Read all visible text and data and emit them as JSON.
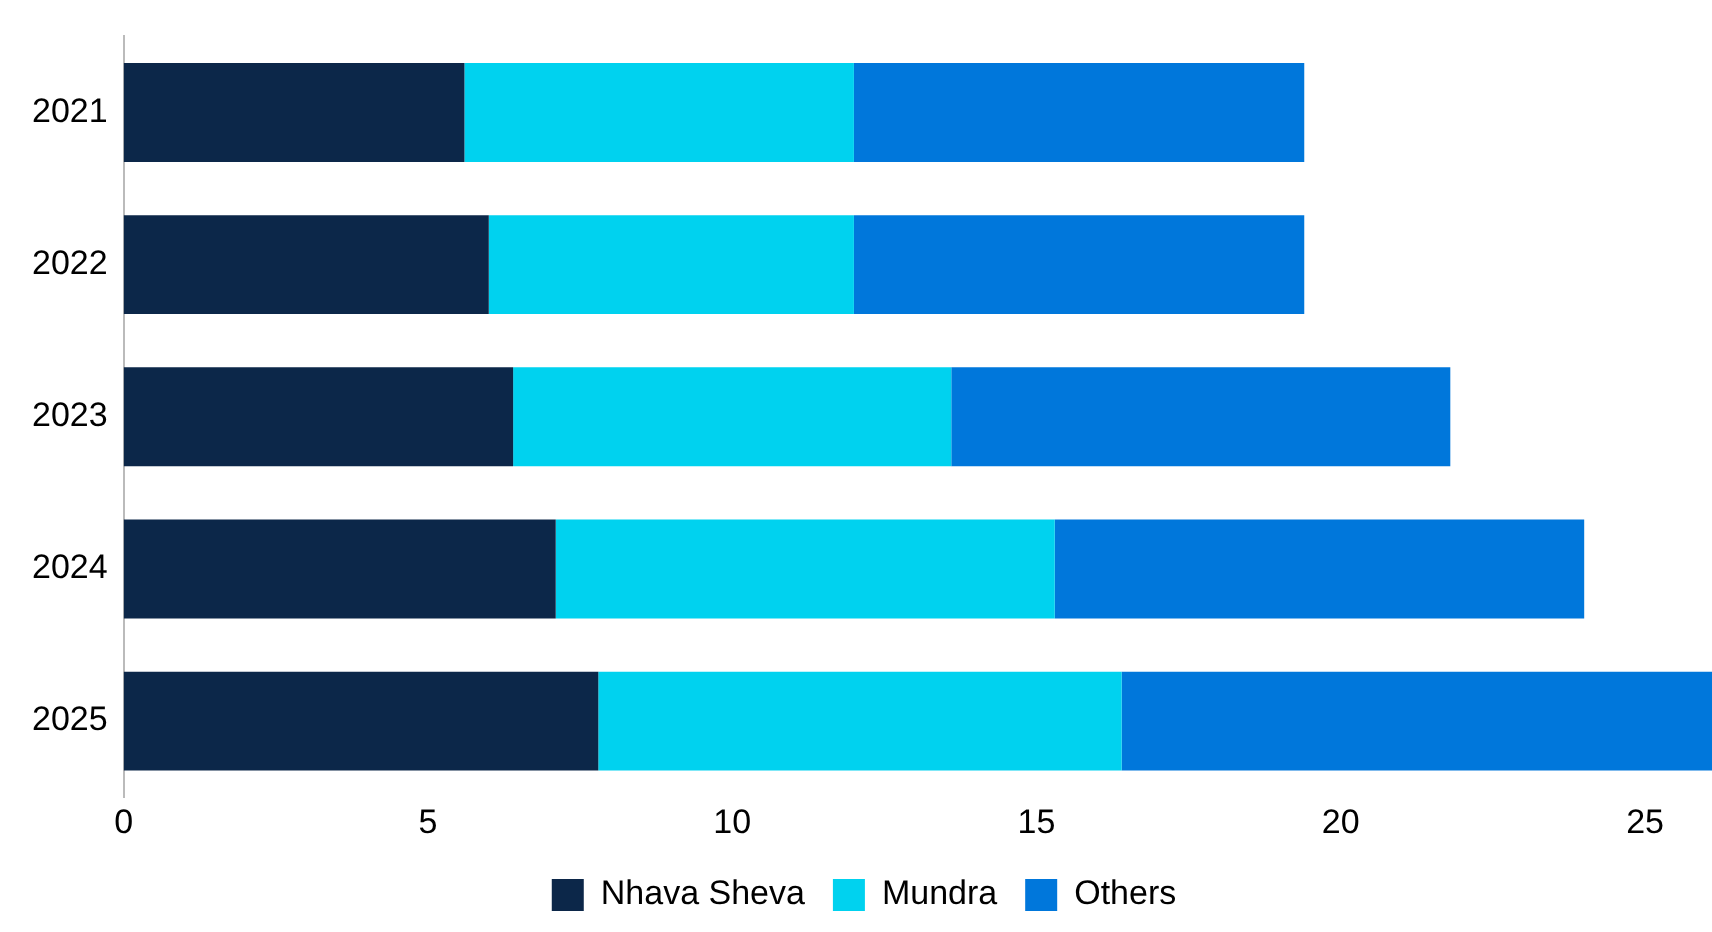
{
  "chart_data": {
    "type": "bar",
    "orientation": "horizontal",
    "stacked": true,
    "categories": [
      "2021",
      "2022",
      "2023",
      "2024",
      "2025"
    ],
    "series": [
      {
        "name": "Nhava Sheva",
        "color": "#0c2749",
        "values": [
          5.6,
          6.0,
          6.4,
          7.1,
          7.8
        ]
      },
      {
        "name": "Mundra",
        "color": "#00d2ef",
        "values": [
          6.4,
          6.0,
          7.2,
          8.2,
          8.6
        ]
      },
      {
        "name": "Others",
        "color": "#0077db",
        "values": [
          7.4,
          7.4,
          8.2,
          8.7,
          9.7
        ]
      }
    ],
    "xlim": [
      0,
      26.1
    ],
    "xticks": [
      0,
      5,
      10,
      15,
      20,
      25
    ],
    "grid": false,
    "legend": "bottom"
  }
}
